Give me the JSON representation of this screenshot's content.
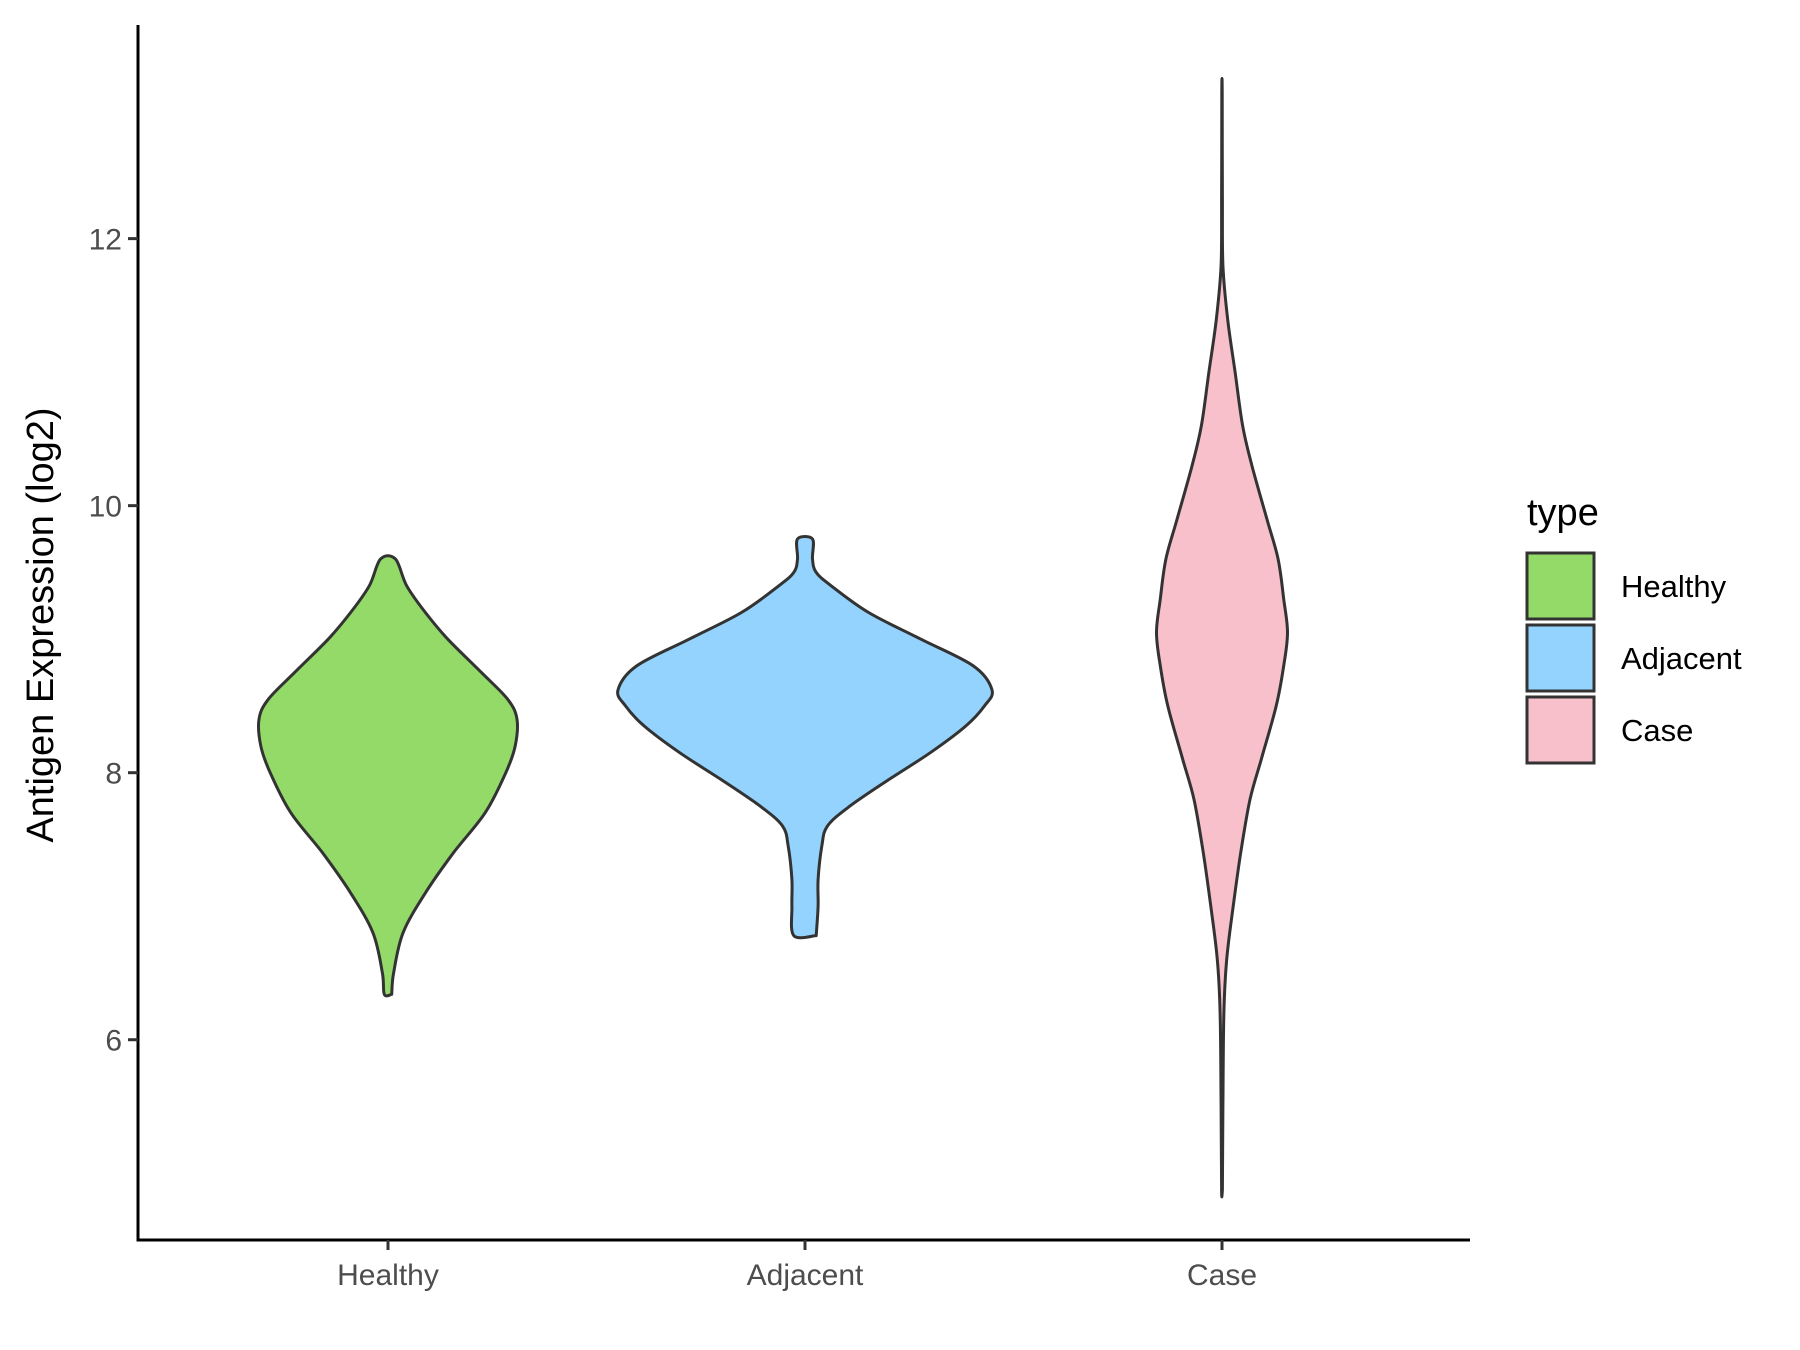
{
  "chart_data": {
    "type": "violin",
    "title": "",
    "xlabel": "",
    "ylabel": "Antigen Expression (log2)",
    "ylim": [
      4.5,
      13.6
    ],
    "yticks": [
      6,
      8,
      10,
      12
    ],
    "ytick_labels": [
      "6",
      "8",
      "10",
      "12"
    ],
    "categories": [
      "Healthy",
      "Adjacent",
      "Case"
    ],
    "grid": false,
    "legend": {
      "title": "type",
      "position": "right",
      "entries": [
        "Healthy",
        "Adjacent",
        "Case"
      ]
    },
    "colors": {
      "Healthy": "#93da69",
      "Adjacent": "#93d3fd",
      "Case": "#f7c0cb",
      "outline": "#333333"
    },
    "series": [
      {
        "category": "Healthy",
        "min": 6.34,
        "max": 9.6,
        "profile": [
          [
            6.34,
            0.02
          ],
          [
            6.5,
            0.03
          ],
          [
            6.8,
            0.08
          ],
          [
            7.1,
            0.2
          ],
          [
            7.4,
            0.35
          ],
          [
            7.7,
            0.52
          ],
          [
            8.0,
            0.63
          ],
          [
            8.2,
            0.68
          ],
          [
            8.4,
            0.69
          ],
          [
            8.55,
            0.64
          ],
          [
            8.75,
            0.5
          ],
          [
            9.0,
            0.32
          ],
          [
            9.2,
            0.2
          ],
          [
            9.4,
            0.1
          ],
          [
            9.6,
            0.04
          ]
        ]
      },
      {
        "category": "Adjacent",
        "min": 6.78,
        "max": 9.75,
        "profile": [
          [
            6.78,
            0.06
          ],
          [
            7.0,
            0.07
          ],
          [
            7.2,
            0.07
          ],
          [
            7.45,
            0.09
          ],
          [
            7.6,
            0.12
          ],
          [
            7.75,
            0.24
          ],
          [
            7.95,
            0.45
          ],
          [
            8.15,
            0.67
          ],
          [
            8.35,
            0.86
          ],
          [
            8.5,
            0.96
          ],
          [
            8.62,
            1.0
          ],
          [
            8.8,
            0.9
          ],
          [
            9.0,
            0.62
          ],
          [
            9.2,
            0.34
          ],
          [
            9.4,
            0.14
          ],
          [
            9.5,
            0.06
          ],
          [
            9.6,
            0.04
          ],
          [
            9.75,
            0.04
          ]
        ]
      },
      {
        "category": "Case",
        "min": 4.87,
        "max": 13.1,
        "profile": [
          [
            4.87,
            0.002
          ],
          [
            5.5,
            0.005
          ],
          [
            6.2,
            0.01
          ],
          [
            6.6,
            0.025
          ],
          [
            7.0,
            0.06
          ],
          [
            7.4,
            0.1
          ],
          [
            7.8,
            0.15
          ],
          [
            8.1,
            0.21
          ],
          [
            8.5,
            0.29
          ],
          [
            8.8,
            0.33
          ],
          [
            9.05,
            0.35
          ],
          [
            9.3,
            0.33
          ],
          [
            9.6,
            0.3
          ],
          [
            9.9,
            0.24
          ],
          [
            10.3,
            0.16
          ],
          [
            10.6,
            0.11
          ],
          [
            11.0,
            0.07
          ],
          [
            11.4,
            0.03
          ],
          [
            11.8,
            0.005
          ],
          [
            12.3,
            0.002
          ],
          [
            13.1,
            0.001
          ]
        ]
      }
    ]
  }
}
